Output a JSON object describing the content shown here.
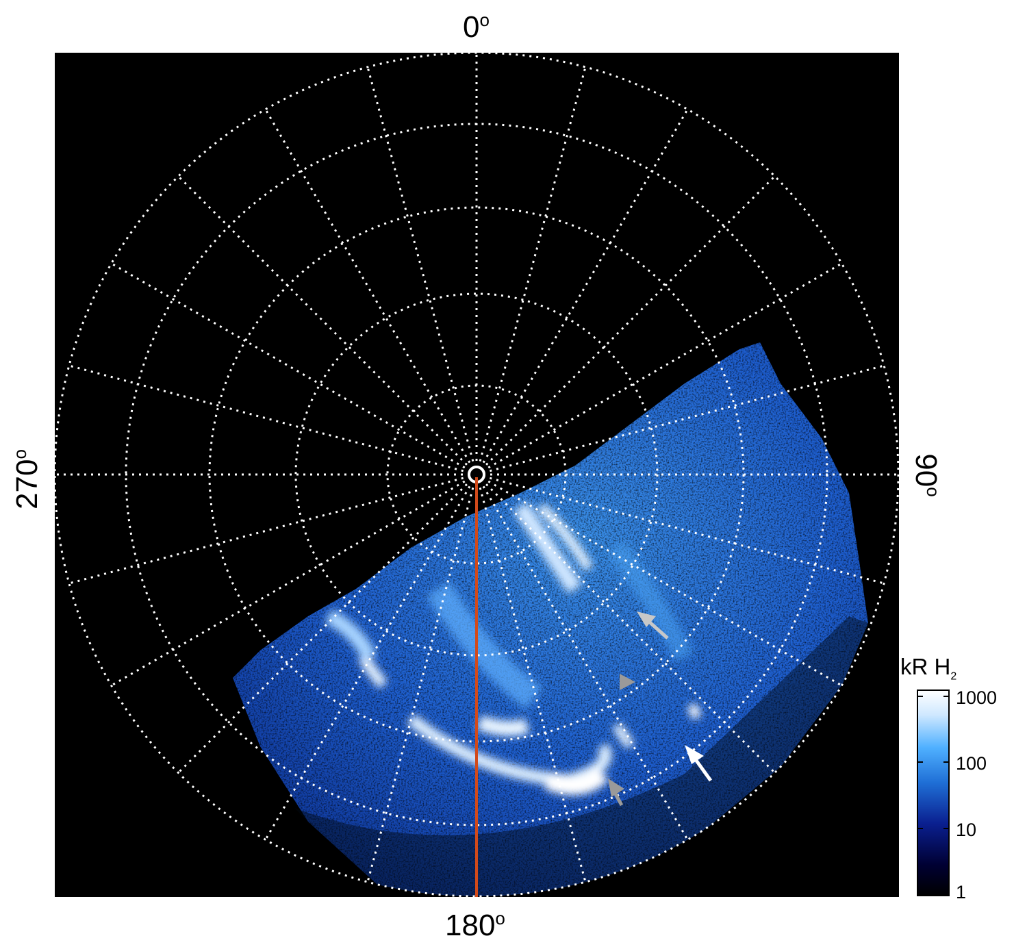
{
  "axis_labels": {
    "top": {
      "value": "0",
      "unit": "o"
    },
    "right": {
      "value": "90",
      "unit": "o"
    },
    "bottom": {
      "value": "180",
      "unit": "o"
    },
    "left": {
      "value": "270",
      "unit": "o"
    }
  },
  "colorbar": {
    "title_main": "kR H",
    "title_sub": "2",
    "ticks": [
      "1000",
      "100",
      "10",
      "1"
    ],
    "scale": "log",
    "colors": [
      "#000000",
      "#000033",
      "#0a1f8f",
      "#1f6fd6",
      "#4fb0ff",
      "#cfe8ff",
      "#ffffff"
    ]
  },
  "colors": {
    "background": "#000000",
    "grid": "#ffffff",
    "meridian": "#d24a1a",
    "arrow_white": "#ffffff",
    "arrow_grey": "#9a9a9a"
  }
}
